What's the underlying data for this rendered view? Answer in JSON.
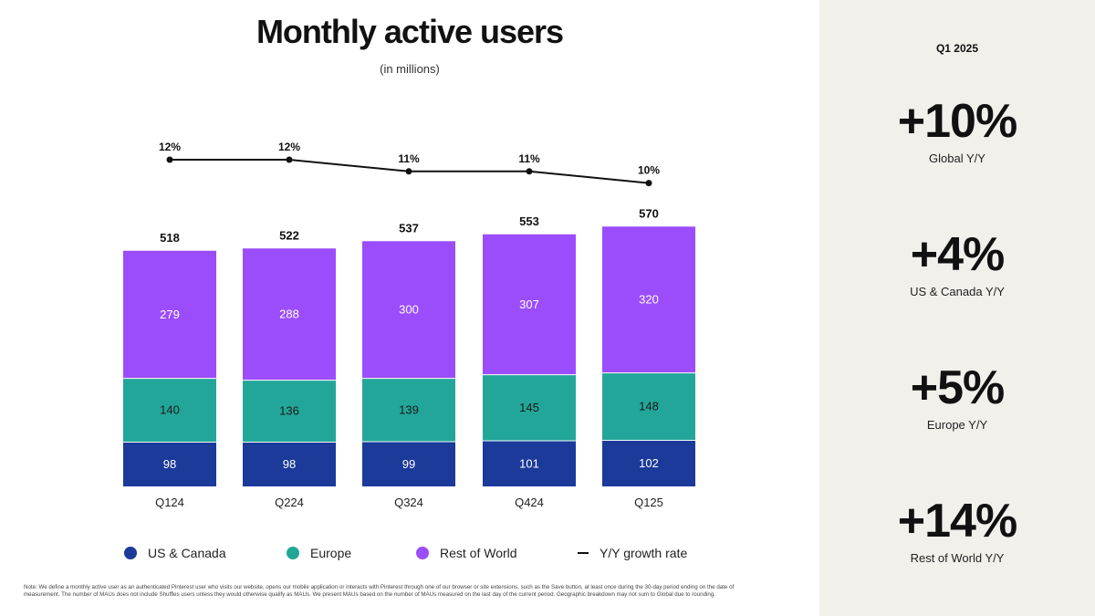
{
  "title": "Monthly active users",
  "subtitle": "(in millions)",
  "chart_data": {
    "type": "bar",
    "stacked": true,
    "categories": [
      "Q124",
      "Q224",
      "Q324",
      "Q424",
      "Q125"
    ],
    "series": [
      {
        "name": "US & Canada",
        "color": "#1b3a9a",
        "values": [
          98,
          98,
          99,
          101,
          102
        ]
      },
      {
        "name": "Europe",
        "color": "#23a69a",
        "values": [
          140,
          136,
          139,
          145,
          148
        ]
      },
      {
        "name": "Rest of World",
        "color": "#9b4dfc",
        "values": [
          279,
          288,
          300,
          307,
          320
        ]
      }
    ],
    "totals": [
      518,
      522,
      537,
      553,
      570
    ],
    "growth_line": {
      "name": "Y/Y growth rate",
      "color": "#111111",
      "values": [
        12,
        12,
        11,
        11,
        10
      ],
      "labels": [
        "12%",
        "12%",
        "11%",
        "11%",
        "10%"
      ]
    }
  },
  "legend": [
    {
      "label": "US & Canada",
      "type": "dot",
      "color": "#1b3a9a"
    },
    {
      "label": "Europe",
      "type": "dot",
      "color": "#23a69a"
    },
    {
      "label": "Rest of World",
      "type": "dot",
      "color": "#9b4dfc"
    },
    {
      "label": "Y/Y growth rate",
      "type": "line",
      "color": "#111111"
    }
  ],
  "note": "Note: We define a monthly active user as an authenticated Pinterest user who visits our website, opens our mobile application or interacts with Pinterest through one of our browser or site extensions, such as the Save button, at least once during the 30-day period ending on the date of measurement. The number of MAUs does not include Shuffles users unless they would otherwise qualify as MAUs. We present MAUs based on the number of MAUs measured on the last day of the current period. Geographic breakdown may not sum to Global due to rounding.",
  "side": {
    "period": "Q1 2025",
    "stats": [
      {
        "value": "+10%",
        "label": "Global Y/Y"
      },
      {
        "value": "+4%",
        "label": "US & Canada Y/Y"
      },
      {
        "value": "+5%",
        "label": "Europe Y/Y"
      },
      {
        "value": "+14%",
        "label": "Rest of World Y/Y"
      }
    ]
  }
}
